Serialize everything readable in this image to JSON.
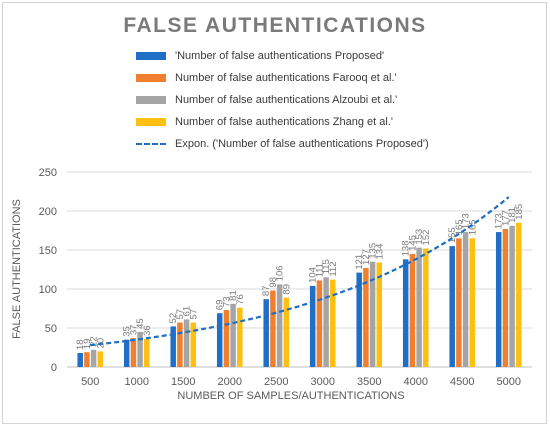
{
  "chart_data": {
    "type": "bar",
    "title": "FALSE AUTHENTICATIONS",
    "xlabel": "NUMBER OF SAMPLES/AUTHENTICATIONS",
    "ylabel": "FALSE AUTHENTICATIONS",
    "ylim": [
      0,
      250
    ],
    "yticks": [
      0,
      50,
      100,
      150,
      200,
      250
    ],
    "grid": true,
    "legend_position": "top",
    "categories": [
      "500",
      "1000",
      "1500",
      "2000",
      "2500",
      "3000",
      "3500",
      "4000",
      "4500",
      "5000"
    ],
    "series": [
      {
        "name": "'Number of false authentications Proposed'",
        "color": "#1f6fc6",
        "values": [
          18,
          35,
          52,
          69,
          87,
          104,
          121,
          138,
          155,
          173
        ]
      },
      {
        "name": "Number of false authentications Farooq et al.'",
        "color": "#f07f30",
        "values": [
          19,
          37,
          57,
          73,
          98,
          111,
          127,
          145,
          165,
          177
        ]
      },
      {
        "name": "Number of false authentications Alzoubi et al.'",
        "color": "#a5a5a5",
        "values": [
          22,
          45,
          61,
          81,
          106,
          115,
          135,
          153,
          173,
          181
        ]
      },
      {
        "name": "Number of false authentications Zhang et al.'",
        "color": "#fdc010",
        "values": [
          20,
          36,
          57,
          76,
          89,
          112,
          134,
          152,
          165,
          185
        ]
      }
    ],
    "trendline": {
      "name": "Expon. ('Number of false authentications Proposed')",
      "type": "exponential",
      "color": "#1f6fc6",
      "start_value": 28,
      "end_value": 218
    }
  }
}
